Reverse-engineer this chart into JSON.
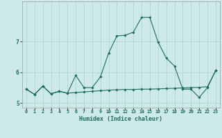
{
  "xlabel": "Humidex (Indice chaleur)",
  "background_color": "#ceeae8",
  "grid_color": "#aed4d0",
  "line_color": "#1a6b60",
  "x_values": [
    0,
    1,
    2,
    3,
    4,
    5,
    6,
    7,
    8,
    9,
    10,
    11,
    12,
    13,
    14,
    15,
    16,
    17,
    18,
    19,
    20,
    21,
    22,
    23
  ],
  "line1_y": [
    5.45,
    5.28,
    5.55,
    5.3,
    5.38,
    5.32,
    5.34,
    5.36,
    5.38,
    5.4,
    5.42,
    5.43,
    5.44,
    5.44,
    5.45,
    5.45,
    5.46,
    5.47,
    5.48,
    5.49,
    5.5,
    5.51,
    5.53,
    6.05
  ],
  "line2_y": [
    5.45,
    5.28,
    5.55,
    5.3,
    5.38,
    5.32,
    5.9,
    5.5,
    5.5,
    5.85,
    6.62,
    7.18,
    7.2,
    7.3,
    7.78,
    7.78,
    6.98,
    6.46,
    6.2,
    5.45,
    5.45,
    5.18,
    5.5,
    6.05
  ],
  "ylim": [
    4.85,
    8.3
  ],
  "xlim": [
    -0.5,
    23.5
  ],
  "yticks": [
    5,
    6,
    7
  ],
  "xticks": [
    0,
    1,
    2,
    3,
    4,
    5,
    6,
    7,
    8,
    9,
    10,
    11,
    12,
    13,
    14,
    15,
    16,
    17,
    18,
    19,
    20,
    21,
    22,
    23
  ],
  "figsize": [
    3.2,
    2.0
  ],
  "dpi": 100
}
